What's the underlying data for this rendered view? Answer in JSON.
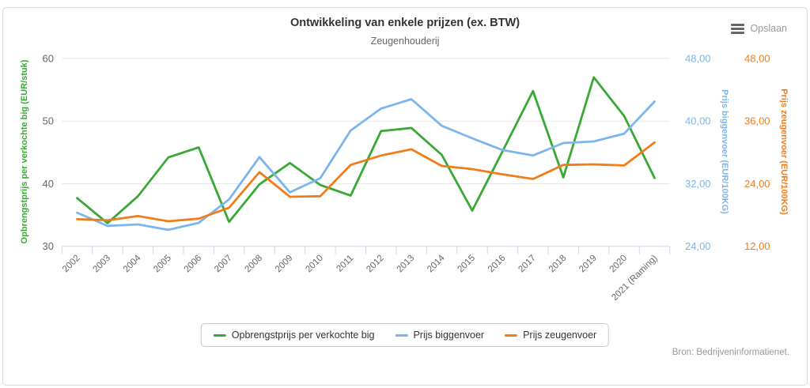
{
  "header": {
    "title": "Ontwikkeling van enkele prijzen (ex. BTW)",
    "subtitle": "Zeugenhouderij",
    "menu_label": "Opslaan"
  },
  "source": "Bron: Bedrijveninformatienet.",
  "colors": {
    "grid": "#e6e6e6",
    "axis_line": "#ccd6eb",
    "tick_label": "#666666"
  },
  "chart_data": {
    "type": "line",
    "title": "Ontwikkeling van enkele prijzen (ex. BTW)",
    "subtitle": "Zeugenhouderij",
    "grid": "horizontal",
    "legend_position": "bottom",
    "categories": [
      "2002",
      "2003",
      "2004",
      "2005",
      "2006",
      "2007",
      "2008",
      "2009",
      "2010",
      "2011",
      "2012",
      "2013",
      "2014",
      "2015",
      "2016",
      "2017",
      "2018",
      "2019",
      "2020",
      "2021 (Raming)"
    ],
    "series": [
      {
        "name": "Opbrengstprijs per verkochte big",
        "axis": "left",
        "color": "#39a935",
        "values": [
          37.7,
          33.7,
          38.0,
          44.2,
          45.8,
          33.9,
          39.9,
          43.3,
          39.8,
          38.1,
          48.4,
          48.9,
          44.6,
          35.7,
          45.2,
          54.8,
          41.0,
          57.0,
          50.8,
          40.9
        ]
      },
      {
        "name": "Prijs biggenvoer",
        "axis": "right1",
        "color": "#7cb5ec",
        "values": [
          28.3,
          26.6,
          26.8,
          26.1,
          27.0,
          30.0,
          35.4,
          30.9,
          32.7,
          38.8,
          41.6,
          42.8,
          39.4,
          37.8,
          36.3,
          35.6,
          37.2,
          37.4,
          38.4,
          42.5
        ]
      },
      {
        "name": "Prijs zeugenvoer",
        "axis": "right2",
        "color": "#ef7d1a",
        "values": [
          17.2,
          17.0,
          17.8,
          16.8,
          17.3,
          19.4,
          26.2,
          21.5,
          21.6,
          27.6,
          29.4,
          30.6,
          27.4,
          26.8,
          25.8,
          24.9,
          27.6,
          27.7,
          27.5,
          31.9
        ]
      }
    ],
    "axes": {
      "left": {
        "title": "Opbrengstprijs per verkochte big (EUR/stuk)",
        "color": "#39a935",
        "min": 30,
        "max": 60,
        "tick_values": [
          30,
          40,
          50,
          60
        ],
        "tick_labels": [
          "30",
          "40",
          "50",
          "60"
        ],
        "tick_label_color": "#666666"
      },
      "right1": {
        "title": "Prijs biggenvoer (EUR/100KG)",
        "color": "#7cb5ec",
        "min": 24,
        "max": 48,
        "tick_values": [
          24,
          32,
          40,
          48
        ],
        "tick_labels": [
          "24,00",
          "32,00",
          "40,00",
          "48,00"
        ],
        "tick_label_color": "#7cb5ec"
      },
      "right2": {
        "title": "Prijs zeugenvoer (EUR/100KG)",
        "color": "#ef7d1a",
        "min": 12,
        "max": 48,
        "tick_values": [
          12,
          24,
          36,
          48
        ],
        "tick_labels": [
          "12,00",
          "24,00",
          "36,00",
          "48,00"
        ],
        "tick_label_color": "#ef7d1a"
      }
    }
  }
}
